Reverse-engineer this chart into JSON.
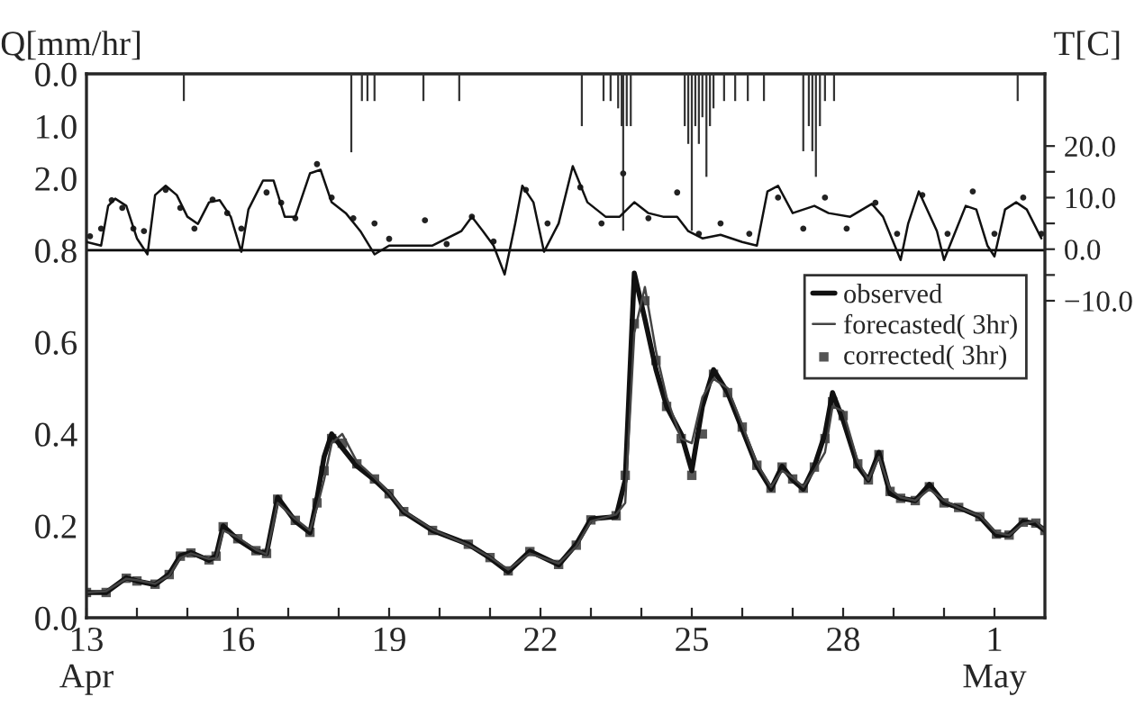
{
  "chart_data": [
    {
      "type": "line",
      "xlim": [
        13,
        32
      ],
      "ylim": [
        0,
        1.184
      ],
      "xticks": [
        {
          "value": 13,
          "label": "13\nApr"
        },
        {
          "value": 14,
          "label": null
        },
        {
          "value": 15,
          "label": null
        },
        {
          "value": 16,
          "label": "16"
        },
        {
          "value": 17,
          "label": null
        },
        {
          "value": 18,
          "label": null
        },
        {
          "value": 19,
          "label": "19"
        },
        {
          "value": 20,
          "label": null
        },
        {
          "value": 21,
          "label": null
        },
        {
          "value": 22,
          "label": "22"
        },
        {
          "value": 23,
          "label": null
        },
        {
          "value": 24,
          "label": null
        },
        {
          "value": 25,
          "label": "25"
        },
        {
          "value": 26,
          "label": null
        },
        {
          "value": 27,
          "label": null
        },
        {
          "value": 28,
          "label": "28"
        },
        {
          "value": 29,
          "label": null
        },
        {
          "value": 30,
          "label": null
        },
        {
          "value": 31,
          "label": "1\nMay"
        }
      ],
      "yticks": [
        {
          "value": 0,
          "label": "0.0"
        },
        {
          "value": 0.2,
          "label": "0.2"
        },
        {
          "value": 0.4,
          "label": "0.4"
        },
        {
          "value": 0.6,
          "label": "0.6"
        },
        {
          "value": 0.8,
          "label": "0.8"
        }
      ],
      "ref_lines": [
        {
          "axis": "y",
          "value": 0.8,
          "color": "#000000"
        }
      ],
      "grid": false,
      "legend": "top right",
      "x": [
        13.0,
        13.39,
        13.79,
        14.0,
        14.36,
        14.64,
        14.86,
        15.07,
        15.43,
        15.57,
        15.71,
        16.0,
        16.36,
        16.57,
        16.79,
        17.14,
        17.43,
        17.57,
        17.71,
        17.86,
        18.07,
        18.36,
        18.71,
        19.0,
        19.29,
        19.86,
        20.57,
        21.0,
        21.36,
        21.79,
        22.36,
        22.71,
        23.0,
        23.5,
        23.68,
        23.86,
        24.07,
        24.29,
        24.5,
        24.79,
        25.0,
        25.21,
        25.43,
        25.71,
        26.0,
        26.29,
        26.57,
        26.79,
        27.0,
        27.21,
        27.43,
        27.64,
        27.79,
        28.0,
        28.29,
        28.5,
        28.71,
        28.93,
        29.14,
        29.43,
        29.71,
        30.0,
        30.29,
        30.71,
        31.04,
        31.29,
        31.57,
        31.82,
        32.0
      ],
      "series": [
        {
          "name": "observed",
          "color": "#111111",
          "line_style": "solid",
          "values": [
            0.055,
            0.055,
            0.087,
            0.08,
            0.072,
            0.095,
            0.135,
            0.142,
            0.125,
            0.135,
            0.2,
            0.17,
            0.145,
            0.14,
            0.262,
            0.21,
            0.185,
            0.26,
            0.35,
            0.4,
            0.37,
            0.33,
            0.3,
            0.27,
            0.23,
            0.19,
            0.16,
            0.13,
            0.1,
            0.145,
            0.115,
            0.16,
            0.215,
            0.22,
            0.3,
            0.75,
            0.65,
            0.54,
            0.46,
            0.4,
            0.32,
            0.46,
            0.54,
            0.49,
            0.41,
            0.33,
            0.28,
            0.33,
            0.3,
            0.28,
            0.33,
            0.4,
            0.49,
            0.43,
            0.33,
            0.3,
            0.36,
            0.27,
            0.26,
            0.255,
            0.29,
            0.25,
            0.24,
            0.22,
            0.18,
            0.18,
            0.21,
            0.205,
            0.19
          ]
        },
        {
          "name": "forecasted( 3hr)",
          "color": "#444444",
          "line_style": "solid",
          "values": [
            0.055,
            0.058,
            0.085,
            0.082,
            0.074,
            0.092,
            0.13,
            0.14,
            0.128,
            0.13,
            0.19,
            0.175,
            0.148,
            0.138,
            0.25,
            0.215,
            0.19,
            0.24,
            0.3,
            0.38,
            0.4,
            0.34,
            0.305,
            0.272,
            0.232,
            0.192,
            0.158,
            0.132,
            0.105,
            0.14,
            0.118,
            0.155,
            0.21,
            0.225,
            0.25,
            0.62,
            0.72,
            0.58,
            0.48,
            0.39,
            0.38,
            0.48,
            0.52,
            0.5,
            0.42,
            0.335,
            0.285,
            0.32,
            0.305,
            0.285,
            0.32,
            0.36,
            0.46,
            0.45,
            0.34,
            0.3,
            0.35,
            0.28,
            0.262,
            0.255,
            0.28,
            0.255,
            0.24,
            0.222,
            0.185,
            0.18,
            0.205,
            0.21,
            0.19
          ]
        },
        {
          "name": "corrected( 3hr)",
          "type": "scatter",
          "color": "#555555",
          "marker": "square",
          "values": [
            0.055,
            0.055,
            0.086,
            0.08,
            0.073,
            0.094,
            0.134,
            0.141,
            0.126,
            0.134,
            0.198,
            0.172,
            0.146,
            0.14,
            0.258,
            0.212,
            0.186,
            0.25,
            0.32,
            0.39,
            0.38,
            0.335,
            0.302,
            0.27,
            0.231,
            0.19,
            0.16,
            0.131,
            0.102,
            0.144,
            0.116,
            0.158,
            0.213,
            0.222,
            0.31,
            0.64,
            0.69,
            0.56,
            0.46,
            0.39,
            0.31,
            0.4,
            0.53,
            0.49,
            0.415,
            0.332,
            0.282,
            0.328,
            0.302,
            0.282,
            0.328,
            0.39,
            0.47,
            0.44,
            0.335,
            0.3,
            0.355,
            0.275,
            0.26,
            0.255,
            0.285,
            0.25,
            0.24,
            0.22,
            0.182,
            0.18,
            0.208,
            0.206,
            0.19
          ]
        }
      ]
    },
    {
      "type": "bar",
      "xlim": [
        13,
        32
      ],
      "ylim": [
        4.34,
        0
      ],
      "y2lim": [
        -10,
        34
      ],
      "tick_labels": "y",
      "ylabel": "Q[mm/hr]",
      "y2label": "T[C]",
      "yticks": [
        {
          "value": 0,
          "label": "0.0"
        },
        {
          "value": 1,
          "label": "1.0"
        },
        {
          "value": 2,
          "label": "2.0"
        }
      ],
      "y2ticks": [
        {
          "value": -10,
          "label": "−10.0"
        },
        {
          "value": -5,
          "label": null
        },
        {
          "value": 0,
          "label": "0.0"
        },
        {
          "value": 5,
          "label": null
        },
        {
          "value": 10,
          "label": "10.0"
        },
        {
          "value": 15,
          "label": null
        },
        {
          "value": 20,
          "label": "20.0"
        }
      ],
      "grid": false,
      "series": [
        {
          "color": "#333333",
          "x": [
            14.93,
            18.25,
            18.46,
            18.57,
            18.71,
            19.68,
            20.39,
            22.82,
            23.25,
            23.39,
            23.54,
            23.61,
            23.64,
            23.71,
            23.79,
            24.86,
            24.93,
            25.0,
            25.07,
            25.14,
            25.21,
            25.29,
            25.36,
            25.43,
            25.64,
            25.86,
            26.11,
            26.43,
            27.21,
            27.32,
            27.39,
            27.46,
            27.54,
            27.64,
            27.82,
            31.46
          ],
          "values": [
            0.52,
            1.5,
            0.52,
            0.52,
            0.52,
            0.52,
            0.52,
            1.0,
            0.52,
            0.52,
            0.66,
            1.0,
            3.0,
            1.0,
            1.0,
            1.0,
            1.34,
            3.0,
            1.0,
            1.34,
            0.83,
            1.97,
            1.0,
            0.66,
            0.52,
            0.52,
            0.52,
            0.52,
            1.48,
            1.0,
            1.48,
            1.97,
            1.0,
            0.52,
            0.52,
            0.52
          ]
        },
        {
          "type": "line",
          "axis": "y2",
          "color": "#111111",
          "line_style": "solid",
          "x": [
            13.0,
            13.29,
            13.43,
            13.57,
            13.79,
            14.0,
            14.21,
            14.36,
            14.57,
            14.79,
            15.0,
            15.21,
            15.43,
            15.64,
            15.86,
            16.07,
            16.21,
            16.5,
            16.71,
            16.93,
            17.14,
            17.43,
            17.64,
            17.86,
            18.14,
            18.43,
            18.71,
            19.0,
            19.29,
            19.86,
            20.43,
            20.64,
            20.86,
            21.07,
            21.29,
            21.5,
            21.64,
            21.86,
            22.07,
            22.36,
            22.64,
            22.93,
            23.29,
            23.57,
            23.86,
            24.14,
            24.43,
            24.71,
            24.93,
            25.21,
            25.57,
            26.0,
            26.29,
            26.5,
            26.71,
            27.0,
            27.43,
            27.71,
            28.14,
            28.57,
            28.79,
            29.14,
            29.29,
            29.5,
            29.86,
            30.0,
            30.43,
            30.64,
            30.86,
            31.0,
            31.21,
            31.43,
            31.64,
            31.93
          ],
          "values": [
            1.4,
            0.7,
            8.4,
            9.8,
            8.4,
            2.1,
            -1.0,
            10.5,
            12.3,
            10.5,
            6.3,
            4.9,
            9.1,
            9.5,
            6.3,
            -0.5,
            7.7,
            13.3,
            13.3,
            6.3,
            6.3,
            14.7,
            15.4,
            9.1,
            7.0,
            3.5,
            -1.0,
            0.7,
            0.7,
            0.7,
            3.5,
            6.3,
            3.5,
            0.7,
            -4.9,
            5.0,
            12.3,
            9.1,
            -0.5,
            5.0,
            16.1,
            9.1,
            6.3,
            6.3,
            9.1,
            7.0,
            6.3,
            6.3,
            3.5,
            2.1,
            2.8,
            1.4,
            0.7,
            11.2,
            12.3,
            7.0,
            8.4,
            7.0,
            6.3,
            8.8,
            6.3,
            -2.1,
            5.0,
            11.2,
            3.5,
            -2.1,
            8.4,
            7.7,
            0.7,
            -1.4,
            7.7,
            9.1,
            7.7,
            2.1
          ]
        },
        {
          "type": "scatter",
          "axis": "y2",
          "color": "#222222",
          "marker": "circle",
          "x": [
            13.07,
            13.29,
            13.5,
            13.71,
            13.93,
            14.14,
            14.57,
            14.86,
            15.14,
            15.5,
            15.79,
            16.07,
            16.57,
            16.86,
            17.14,
            17.57,
            17.86,
            18.29,
            18.71,
            19.0,
            19.71,
            20.14,
            20.64,
            21.07,
            21.71,
            22.14,
            22.79,
            23.21,
            23.64,
            24.14,
            24.71,
            25.14,
            25.57,
            26.14,
            26.71,
            27.21,
            27.64,
            28.07,
            28.64,
            29.07,
            29.57,
            30.07,
            30.57,
            31.0,
            31.57,
            31.93
          ],
          "values": [
            2.5,
            4,
            9.5,
            8,
            4,
            3.5,
            11.5,
            8,
            4,
            9.6,
            7,
            4,
            11,
            9,
            6,
            16.5,
            10,
            6,
            5,
            2,
            5.6,
            1,
            6.3,
            1.5,
            11.5,
            5,
            12,
            5,
            14.7,
            6,
            11,
            3,
            5,
            3,
            10,
            4,
            10,
            4,
            9,
            3,
            10.5,
            3,
            11.2,
            3,
            10,
            3
          ]
        }
      ]
    }
  ]
}
